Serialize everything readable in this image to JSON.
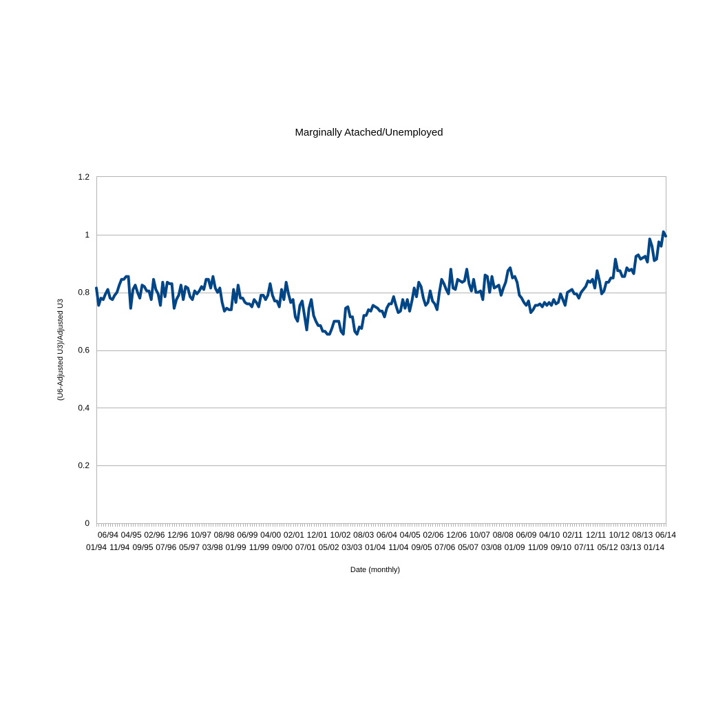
{
  "chart_data": {
    "type": "line",
    "title": "Marginally Atached/Unemployed",
    "xlabel": "Date (monthly)",
    "ylabel": "(U6-Adjusted U3)/Adjusted U3",
    "ylim": [
      0,
      1.2
    ],
    "yticks": [
      "0",
      "0.2",
      "0.4",
      "0.6",
      "0.8",
      "1",
      "1.2"
    ],
    "grid": true,
    "legend": "none",
    "colors": {
      "series": "#004586",
      "grid": "#b3b3b3"
    },
    "x_tick_labels_row1": [
      "06/94",
      "04/95",
      "02/96",
      "12/96",
      "10/97",
      "08/98",
      "06/99",
      "04/00",
      "02/01",
      "12/01",
      "10/02",
      "08/03",
      "06/04",
      "04/05",
      "02/06",
      "12/06",
      "10/07",
      "08/08",
      "06/09",
      "04/10",
      "02/11",
      "12/11",
      "10/12",
      "08/13",
      "06/14"
    ],
    "x_tick_labels_row2": [
      "01/94",
      "11/94",
      "09/95",
      "07/96",
      "05/97",
      "03/98",
      "01/99",
      "11/99",
      "09/00",
      "07/01",
      "05/02",
      "03/03",
      "01/04",
      "11/04",
      "09/05",
      "07/06",
      "05/07",
      "03/08",
      "01/09",
      "11/09",
      "09/10",
      "07/11",
      "05/12",
      "03/13",
      "01/14"
    ],
    "x_start": "01/94",
    "x_end": "06/14",
    "series": [
      {
        "values": [
          0.815,
          0.755,
          0.78,
          0.775,
          0.795,
          0.81,
          0.78,
          0.775,
          0.79,
          0.8,
          0.825,
          0.845,
          0.845,
          0.855,
          0.855,
          0.745,
          0.81,
          0.825,
          0.8,
          0.78,
          0.825,
          0.82,
          0.805,
          0.805,
          0.775,
          0.845,
          0.81,
          0.795,
          0.755,
          0.835,
          0.785,
          0.835,
          0.83,
          0.83,
          0.745,
          0.775,
          0.79,
          0.825,
          0.775,
          0.82,
          0.815,
          0.785,
          0.775,
          0.805,
          0.795,
          0.805,
          0.82,
          0.81,
          0.845,
          0.845,
          0.815,
          0.855,
          0.815,
          0.8,
          0.815,
          0.765,
          0.735,
          0.745,
          0.74,
          0.74,
          0.81,
          0.765,
          0.825,
          0.78,
          0.78,
          0.765,
          0.76,
          0.76,
          0.75,
          0.775,
          0.765,
          0.75,
          0.79,
          0.79,
          0.775,
          0.79,
          0.83,
          0.79,
          0.77,
          0.77,
          0.75,
          0.81,
          0.775,
          0.835,
          0.795,
          0.765,
          0.775,
          0.715,
          0.7,
          0.755,
          0.77,
          0.72,
          0.67,
          0.745,
          0.775,
          0.72,
          0.7,
          0.685,
          0.685,
          0.665,
          0.665,
          0.655,
          0.655,
          0.675,
          0.7,
          0.7,
          0.7,
          0.665,
          0.655,
          0.745,
          0.75,
          0.715,
          0.715,
          0.665,
          0.655,
          0.68,
          0.675,
          0.72,
          0.72,
          0.74,
          0.735,
          0.755,
          0.75,
          0.745,
          0.735,
          0.735,
          0.715,
          0.745,
          0.76,
          0.76,
          0.785,
          0.755,
          0.73,
          0.735,
          0.775,
          0.745,
          0.775,
          0.735,
          0.77,
          0.815,
          0.785,
          0.835,
          0.82,
          0.78,
          0.755,
          0.765,
          0.805,
          0.77,
          0.76,
          0.74,
          0.8,
          0.845,
          0.83,
          0.81,
          0.795,
          0.88,
          0.815,
          0.81,
          0.845,
          0.84,
          0.835,
          0.84,
          0.88,
          0.83,
          0.805,
          0.845,
          0.8,
          0.8,
          0.805,
          0.775,
          0.86,
          0.855,
          0.8,
          0.855,
          0.815,
          0.82,
          0.825,
          0.79,
          0.815,
          0.835,
          0.875,
          0.885,
          0.85,
          0.855,
          0.835,
          0.79,
          0.78,
          0.765,
          0.755,
          0.77,
          0.73,
          0.74,
          0.755,
          0.755,
          0.76,
          0.75,
          0.765,
          0.755,
          0.765,
          0.755,
          0.775,
          0.76,
          0.765,
          0.795,
          0.775,
          0.755,
          0.8,
          0.805,
          0.81,
          0.795,
          0.795,
          0.78,
          0.8,
          0.81,
          0.82,
          0.84,
          0.835,
          0.845,
          0.815,
          0.875,
          0.84,
          0.795,
          0.805,
          0.835,
          0.835,
          0.85,
          0.85,
          0.915,
          0.875,
          0.875,
          0.855,
          0.855,
          0.885,
          0.875,
          0.88,
          0.865,
          0.925,
          0.93,
          0.915,
          0.92,
          0.925,
          0.905,
          0.985,
          0.96,
          0.91,
          0.915,
          0.975,
          0.96,
          1.01,
          0.995
        ]
      }
    ]
  }
}
